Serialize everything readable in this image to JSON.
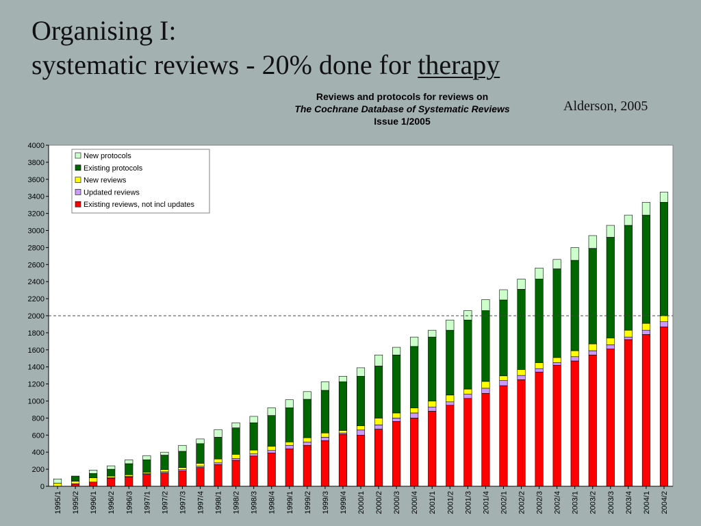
{
  "slide": {
    "title_line1": "Organising I:",
    "title_line2_prefix": "systematic reviews - 20% done for ",
    "title_line2_underlined": "therapy",
    "citation": "Alderson, 2005"
  },
  "chart_data": {
    "type": "bar",
    "stacked": true,
    "title_lines": [
      "Reviews and protocols for reviews on",
      "The Cochrane Database of Systematic Reviews",
      "Issue 1/2005"
    ],
    "xlabel": "",
    "ylabel": "",
    "ylim": [
      0,
      4000
    ],
    "yticks": [
      0,
      200,
      400,
      600,
      800,
      1000,
      1200,
      1400,
      1600,
      1800,
      2000,
      2200,
      2400,
      2600,
      2800,
      3000,
      3200,
      3400,
      3600,
      3800,
      4000
    ],
    "reference_line": 2000,
    "legend_position": "top-left",
    "grid": false,
    "categories": [
      "1995/1",
      "1995/2",
      "1996/1",
      "1996/2",
      "1996/3",
      "1997/1",
      "1997/2",
      "1997/3",
      "1997/4",
      "1998/1",
      "1998/2",
      "1998/3",
      "1998/4",
      "1999/1",
      "1999/2",
      "1999/3",
      "1999/4",
      "2000/1",
      "2000/2",
      "2000/3",
      "2000/4",
      "2001/1",
      "2001/2",
      "2001/3",
      "2001/4",
      "2002/1",
      "2002/2",
      "2002/3",
      "2002/4",
      "2003/1",
      "2003/2",
      "2003/3",
      "2003/4",
      "2004/1",
      "2004/2"
    ],
    "series": [
      {
        "name": "Existing reviews, not incl updates",
        "color": "#ff0000",
        "values": [
          0,
          30,
          50,
          95,
          110,
          140,
          155,
          180,
          220,
          255,
          305,
          355,
          390,
          440,
          480,
          535,
          610,
          600,
          670,
          760,
          800,
          880,
          950,
          1030,
          1090,
          1180,
          1250,
          1340,
          1420,
          1470,
          1540,
          1610,
          1720,
          1780,
          1870
        ]
      },
      {
        "name": "Updated reviews",
        "color": "#cc99ff",
        "values": [
          0,
          0,
          0,
          5,
          5,
          10,
          15,
          15,
          15,
          20,
          20,
          25,
          30,
          40,
          40,
          40,
          15,
          60,
          50,
          40,
          60,
          50,
          40,
          50,
          60,
          60,
          50,
          40,
          30,
          50,
          50,
          50,
          30,
          50,
          60
        ]
      },
      {
        "name": "New reviews",
        "color": "#ffff00",
        "values": [
          36,
          30,
          50,
          20,
          20,
          15,
          25,
          25,
          35,
          45,
          50,
          45,
          50,
          40,
          50,
          50,
          30,
          50,
          80,
          60,
          60,
          70,
          80,
          60,
          80,
          55,
          70,
          70,
          60,
          70,
          80,
          80,
          80,
          80,
          70
        ]
      },
      {
        "name": "Existing protocols",
        "color": "#006600",
        "values": [
          0,
          60,
          50,
          80,
          130,
          145,
          170,
          190,
          230,
          255,
          310,
          320,
          360,
          400,
          450,
          500,
          570,
          580,
          610,
          680,
          720,
          750,
          760,
          810,
          830,
          890,
          940,
          980,
          1040,
          1060,
          1120,
          1180,
          1230,
          1270,
          1330
        ]
      },
      {
        "name": "New protocols",
        "color": "#ccffcc",
        "values": [
          50,
          0,
          40,
          40,
          45,
          50,
          35,
          70,
          55,
          90,
          60,
          75,
          90,
          95,
          90,
          100,
          65,
          100,
          130,
          90,
          110,
          80,
          120,
          110,
          130,
          120,
          120,
          130,
          110,
          150,
          150,
          140,
          120,
          150,
          120
        ]
      }
    ]
  }
}
